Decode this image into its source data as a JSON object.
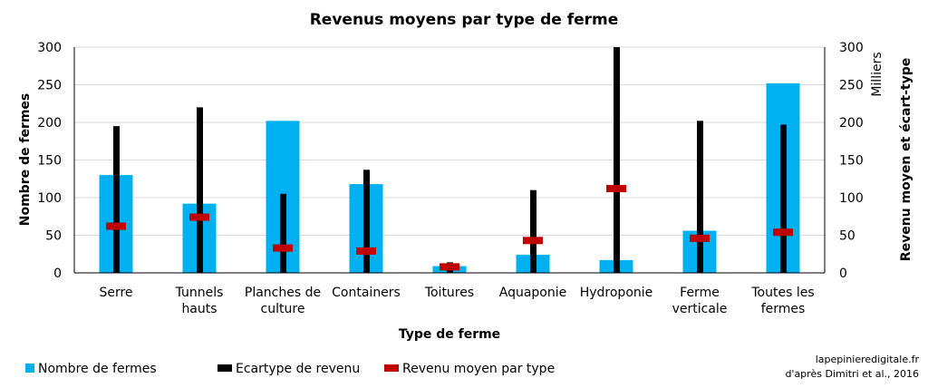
{
  "chart_data": {
    "type": "bar",
    "title": "Revenus moyens par type de ferme",
    "xlabel": "Type de ferme",
    "ylabel": "Nombre de fermes",
    "y2label": "Revenu moyen et écart-type",
    "y2_unit_label": "Milliers",
    "ylim": [
      0,
      300
    ],
    "y2lim": [
      0,
      300
    ],
    "yticks": [
      "0",
      "50",
      "100",
      "150",
      "200",
      "250",
      "300"
    ],
    "y2ticks": [
      "0",
      "50",
      "100",
      "150",
      "200",
      "250",
      "300"
    ],
    "categories": [
      [
        "Serre"
      ],
      [
        "Tunnels",
        "hauts"
      ],
      [
        "Planches de",
        "culture"
      ],
      [
        "Containers"
      ],
      [
        "Toitures"
      ],
      [
        "Aquaponie"
      ],
      [
        "Hydroponie"
      ],
      [
        "Ferme",
        "verticale"
      ],
      [
        "Toutes les",
        "fermes"
      ]
    ],
    "series": [
      {
        "name": "Nombre de fermes",
        "axis": "left",
        "color": "#00b0f0",
        "values": [
          130,
          92,
          202,
          118,
          9,
          24,
          17,
          56,
          252
        ]
      },
      {
        "name": "Ecartype de revenu",
        "axis": "right",
        "color": "#000000",
        "values": [
          195,
          220,
          105,
          137,
          14,
          110,
          300,
          202,
          197
        ]
      },
      {
        "name": "Revenu moyen par type",
        "axis": "right",
        "color": "#c00000",
        "values": [
          62,
          74,
          33,
          29,
          8,
          43,
          112,
          46,
          54
        ]
      }
    ],
    "grid": true,
    "legend_position": "bottom-left"
  },
  "credit": {
    "line1": "lapepinieredigitale.fr",
    "line2": "d'après Dimitri et al., 2016"
  }
}
